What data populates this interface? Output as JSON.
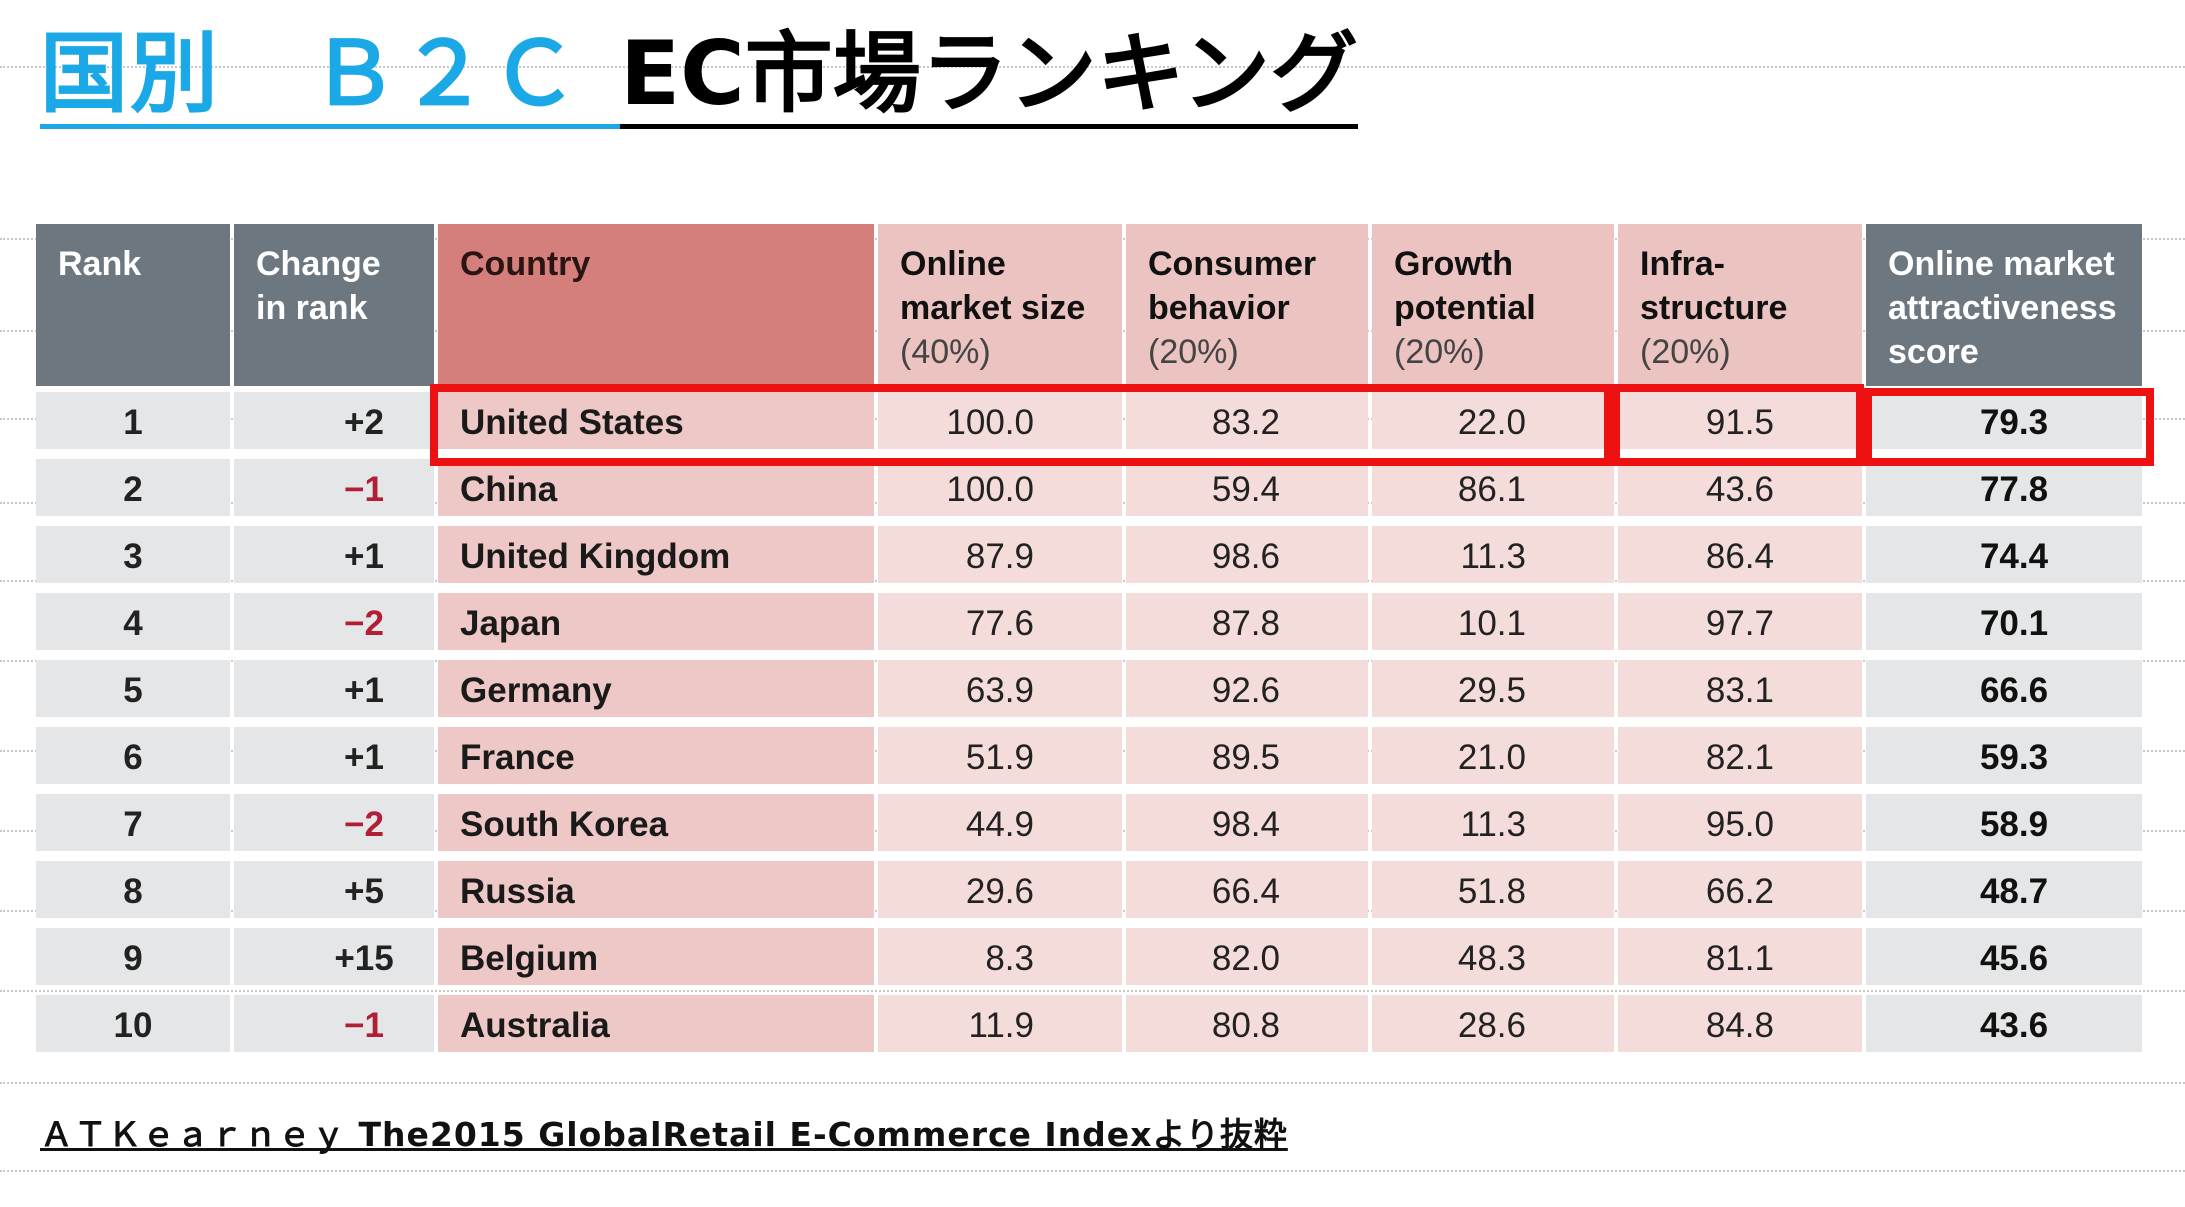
{
  "title": {
    "part1": "国別　Ｂ２Ｃ",
    "part2": "EC市場ランキング"
  },
  "table": {
    "headers": [
      {
        "label": "Rank",
        "sub": ""
      },
      {
        "label": "Change in rank",
        "sub": ""
      },
      {
        "label": "Country",
        "sub": ""
      },
      {
        "label": "Online market size",
        "sub": "(40%)"
      },
      {
        "label": "Consumer behavior",
        "sub": "(20%)"
      },
      {
        "label": "Growth potential",
        "sub": "(20%)"
      },
      {
        "label": "Infra-structure",
        "sub": "(20%)"
      },
      {
        "label": "Online market attractiveness score",
        "sub": ""
      }
    ],
    "rows": [
      {
        "rank": "1",
        "change": "+2",
        "country": "United States",
        "market": "100.0",
        "consumer": "83.2",
        "growth": "22.0",
        "infra": "91.5",
        "score": "79.3"
      },
      {
        "rank": "2",
        "change": "−1",
        "country": "China",
        "market": "100.0",
        "consumer": "59.4",
        "growth": "86.1",
        "infra": "43.6",
        "score": "77.8"
      },
      {
        "rank": "3",
        "change": "+1",
        "country": "United Kingdom",
        "market": "87.9",
        "consumer": "98.6",
        "growth": "11.3",
        "infra": "86.4",
        "score": "74.4"
      },
      {
        "rank": "4",
        "change": "−2",
        "country": "Japan",
        "market": "77.6",
        "consumer": "87.8",
        "growth": "10.1",
        "infra": "97.7",
        "score": "70.1"
      },
      {
        "rank": "5",
        "change": "+1",
        "country": "Germany",
        "market": "63.9",
        "consumer": "92.6",
        "growth": "29.5",
        "infra": "83.1",
        "score": "66.6"
      },
      {
        "rank": "6",
        "change": "+1",
        "country": "France",
        "market": "51.9",
        "consumer": "89.5",
        "growth": "21.0",
        "infra": "82.1",
        "score": "59.3"
      },
      {
        "rank": "7",
        "change": "−2",
        "country": "South Korea",
        "market": "44.9",
        "consumer": "98.4",
        "growth": "11.3",
        "infra": "95.0",
        "score": "58.9"
      },
      {
        "rank": "8",
        "change": "+5",
        "country": "Russia",
        "market": "29.6",
        "consumer": "66.4",
        "growth": "51.8",
        "infra": "66.2",
        "score": "48.7"
      },
      {
        "rank": "9",
        "change": "+15",
        "country": "Belgium",
        "market": "8.3",
        "consumer": "82.0",
        "growth": "48.3",
        "infra": "81.1",
        "score": "45.6"
      },
      {
        "rank": "10",
        "change": "−1",
        "country": "Australia",
        "market": "11.9",
        "consumer": "80.8",
        "growth": "28.6",
        "infra": "84.8",
        "score": "43.6"
      }
    ]
  },
  "source": "ＡＴＫｅａｒｎｅｙ The2015 GlobalRetail E-Commerce Indexより抜粋",
  "colors": {
    "title_accent": "#1aa8e6",
    "highlight": "#ee1111",
    "negative_change": "#b11e35",
    "header_gray": "#6c7780",
    "header_country": "#d47f7c"
  }
}
